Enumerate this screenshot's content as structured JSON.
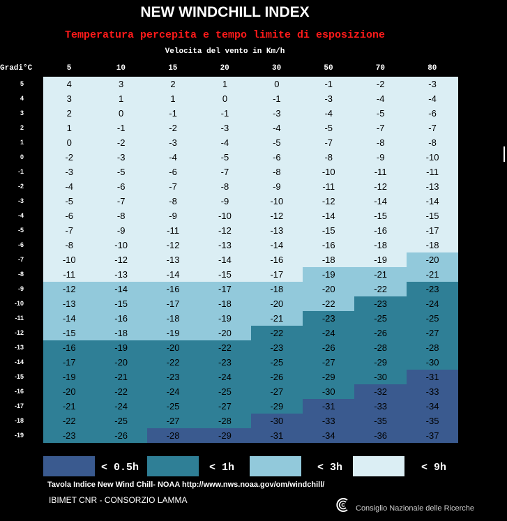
{
  "title": "NEW WINDCHILL INDEX",
  "subtitle": "Temperatura percepita e tempo limite di esposizione",
  "chart_data": {
    "type": "table",
    "xlabel": "Velocita del vento in Km/h",
    "ylabel": "Gradi°C",
    "wind_speeds": [
      "5",
      "10",
      "15",
      "20",
      "30",
      "50",
      "70",
      "80"
    ],
    "temperatures": [
      "5",
      "4",
      "3",
      "2",
      "1",
      "0",
      "-1",
      "-2",
      "-3",
      "-4",
      "-5",
      "-6",
      "-7",
      "-8",
      "-9",
      "-10",
      "-11",
      "-12",
      "-13",
      "-14",
      "-15",
      "-16",
      "-17",
      "-18",
      "-19"
    ],
    "values": [
      [
        4,
        3,
        2,
        1,
        0,
        -1,
        -2,
        -3
      ],
      [
        3,
        1,
        1,
        0,
        -1,
        -3,
        -4,
        -4
      ],
      [
        2,
        0,
        -1,
        -1,
        -3,
        -4,
        -5,
        -6
      ],
      [
        1,
        -1,
        -2,
        -3,
        -4,
        -5,
        -7,
        -7
      ],
      [
        0,
        -2,
        -3,
        -4,
        -5,
        -7,
        -8,
        -8
      ],
      [
        -2,
        -3,
        -4,
        -5,
        -6,
        -8,
        -9,
        -10
      ],
      [
        -3,
        -5,
        -6,
        -7,
        -8,
        -10,
        -11,
        -11
      ],
      [
        -4,
        -6,
        -7,
        -8,
        -9,
        -11,
        -12,
        -13
      ],
      [
        -5,
        -7,
        -8,
        -9,
        -10,
        -12,
        -14,
        -14
      ],
      [
        -6,
        -8,
        -9,
        -10,
        -12,
        -14,
        -15,
        -15
      ],
      [
        -7,
        -9,
        -11,
        -12,
        -13,
        -15,
        -16,
        -17
      ],
      [
        -8,
        -10,
        -12,
        -13,
        -14,
        -16,
        -18,
        -18
      ],
      [
        -10,
        -12,
        -13,
        -14,
        -16,
        -18,
        -19,
        -20
      ],
      [
        -11,
        -13,
        -14,
        -15,
        -17,
        -19,
        -21,
        -21
      ],
      [
        -12,
        -14,
        -16,
        -17,
        -18,
        -20,
        -22,
        -23
      ],
      [
        -13,
        -15,
        -17,
        -18,
        -20,
        -22,
        -23,
        -24
      ],
      [
        -14,
        -16,
        -18,
        -19,
        -21,
        -23,
        -25,
        -25
      ],
      [
        -15,
        -18,
        -19,
        -20,
        -22,
        -24,
        -26,
        -27
      ],
      [
        -16,
        -19,
        -20,
        -22,
        -23,
        -26,
        -28,
        -28
      ],
      [
        -17,
        -20,
        -22,
        -23,
        -25,
        -27,
        -29,
        -30
      ],
      [
        -19,
        -21,
        -23,
        -24,
        -26,
        -29,
        -30,
        -31
      ],
      [
        -20,
        -22,
        -24,
        -25,
        -27,
        -30,
        -32,
        -33
      ],
      [
        -21,
        -24,
        -25,
        -27,
        -29,
        -31,
        -33,
        -34
      ],
      [
        -22,
        -25,
        -27,
        -28,
        -30,
        -33,
        -35,
        -35
      ],
      [
        -23,
        -26,
        -28,
        -29,
        -31,
        -34,
        -36,
        -37
      ]
    ],
    "exposure_class": [
      [
        3,
        3,
        3,
        3,
        3,
        3,
        3,
        3
      ],
      [
        3,
        3,
        3,
        3,
        3,
        3,
        3,
        3
      ],
      [
        3,
        3,
        3,
        3,
        3,
        3,
        3,
        3
      ],
      [
        3,
        3,
        3,
        3,
        3,
        3,
        3,
        3
      ],
      [
        3,
        3,
        3,
        3,
        3,
        3,
        3,
        3
      ],
      [
        3,
        3,
        3,
        3,
        3,
        3,
        3,
        3
      ],
      [
        3,
        3,
        3,
        3,
        3,
        3,
        3,
        3
      ],
      [
        3,
        3,
        3,
        3,
        3,
        3,
        3,
        3
      ],
      [
        3,
        3,
        3,
        3,
        3,
        3,
        3,
        3
      ],
      [
        3,
        3,
        3,
        3,
        3,
        3,
        3,
        3
      ],
      [
        3,
        3,
        3,
        3,
        3,
        3,
        3,
        3
      ],
      [
        3,
        3,
        3,
        3,
        3,
        3,
        3,
        3
      ],
      [
        3,
        3,
        3,
        3,
        3,
        3,
        3,
        2
      ],
      [
        3,
        3,
        3,
        3,
        3,
        2,
        2,
        2
      ],
      [
        2,
        2,
        2,
        2,
        2,
        2,
        2,
        1
      ],
      [
        2,
        2,
        2,
        2,
        2,
        2,
        1,
        1
      ],
      [
        2,
        2,
        2,
        2,
        2,
        1,
        1,
        1
      ],
      [
        2,
        2,
        2,
        2,
        1,
        1,
        1,
        1
      ],
      [
        1,
        1,
        1,
        1,
        1,
        1,
        1,
        1
      ],
      [
        1,
        1,
        1,
        1,
        1,
        1,
        1,
        1
      ],
      [
        1,
        1,
        1,
        1,
        1,
        1,
        1,
        0
      ],
      [
        1,
        1,
        1,
        1,
        1,
        1,
        0,
        0
      ],
      [
        1,
        1,
        1,
        1,
        1,
        0,
        0,
        0
      ],
      [
        1,
        1,
        1,
        1,
        0,
        0,
        0,
        0
      ],
      [
        1,
        1,
        0,
        0,
        0,
        0,
        0,
        0
      ]
    ],
    "class_colors": [
      "#3a5a8f",
      "#2f7f96",
      "#92c9db",
      "#dbeef4"
    ]
  },
  "legend": [
    {
      "label": "< 0.5h",
      "color": "#3a5a8f"
    },
    {
      "label": "< 1h",
      "color": "#2f7f96"
    },
    {
      "label": "< 3h",
      "color": "#92c9db"
    },
    {
      "label": "< 9h",
      "color": "#dbeef4"
    }
  ],
  "footer": {
    "source": "Tavola Indice New Wind Chill- NOAA http://www.nws.noaa.gov/om/windchill/",
    "org": "IBIMET CNR - CONSORZIO LAMMA",
    "cnr": "Consiglio Nazionale delle Ricerche"
  }
}
